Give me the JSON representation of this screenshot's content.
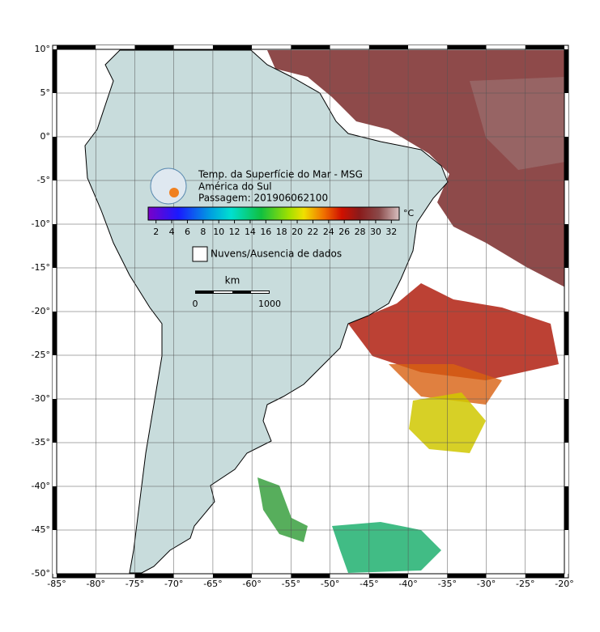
{
  "map": {
    "title_lines": [
      "Temp. da Superfície do Mar - MSG",
      "América do Sul",
      "Passagem: 201906062100"
    ],
    "xlim": [
      -85,
      -20
    ],
    "ylim": [
      -50,
      10
    ],
    "xticks": [
      {
        "value": -85,
        "label": "-85°"
      },
      {
        "value": -80,
        "label": "-80°"
      },
      {
        "value": -75,
        "label": "-75°"
      },
      {
        "value": -70,
        "label": "-70°"
      },
      {
        "value": -65,
        "label": "-65°"
      },
      {
        "value": -60,
        "label": "-60°"
      },
      {
        "value": -55,
        "label": "-55°"
      },
      {
        "value": -50,
        "label": "-50°"
      },
      {
        "value": -45,
        "label": "-45°"
      },
      {
        "value": -40,
        "label": "-40°"
      },
      {
        "value": -35,
        "label": "-35°"
      },
      {
        "value": -30,
        "label": "-30°"
      },
      {
        "value": -25,
        "label": "-25°"
      },
      {
        "value": -20,
        "label": "-20°"
      }
    ],
    "yticks": [
      {
        "value": 10,
        "label": "10°"
      },
      {
        "value": 5,
        "label": "5°"
      },
      {
        "value": 0,
        "label": "0°"
      },
      {
        "value": -5,
        "label": "-5°"
      },
      {
        "value": -10,
        "label": "-10°"
      },
      {
        "value": -15,
        "label": "-15°"
      },
      {
        "value": -20,
        "label": "-20°"
      },
      {
        "value": -25,
        "label": "-25°"
      },
      {
        "value": -30,
        "label": "-30°"
      },
      {
        "value": -35,
        "label": "-35°"
      },
      {
        "value": -40,
        "label": "-40°"
      },
      {
        "value": -45,
        "label": "-45°"
      },
      {
        "value": -50,
        "label": "-50°"
      }
    ],
    "grid": true,
    "colorbar": {
      "unit": "°C",
      "clim": [
        1,
        33
      ],
      "ticks": [
        2,
        4,
        6,
        8,
        10,
        12,
        14,
        16,
        18,
        20,
        22,
        24,
        26,
        28,
        30,
        32
      ]
    },
    "legend": "Nuvens/Ausencia de dados",
    "scale_bar": {
      "unit": "km",
      "labels": [
        "0",
        "1000"
      ]
    }
  }
}
